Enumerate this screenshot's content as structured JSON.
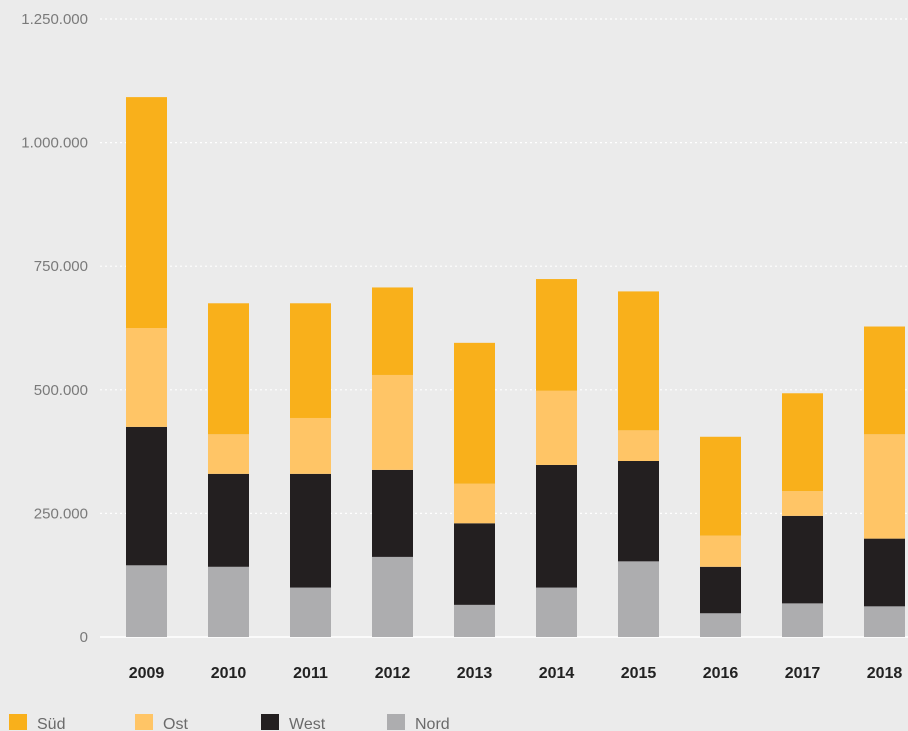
{
  "chart_data": {
    "type": "bar",
    "stacked": true,
    "categories": [
      "2009",
      "2010",
      "2011",
      "2012",
      "2013",
      "2014",
      "2015",
      "2016",
      "2017",
      "2018"
    ],
    "series": [
      {
        "name": "Nord",
        "color": "#adadaf",
        "values": [
          145000,
          142000,
          100000,
          162000,
          65000,
          100000,
          153000,
          48000,
          68000,
          62000
        ]
      },
      {
        "name": "West",
        "color": "#231f20",
        "values": [
          280000,
          188000,
          230000,
          176000,
          165000,
          248000,
          203000,
          94000,
          177000,
          137000
        ]
      },
      {
        "name": "Ost",
        "color": "#ffc566",
        "values": [
          200000,
          80000,
          113000,
          192000,
          80000,
          150000,
          62000,
          63000,
          50000,
          211000
        ]
      },
      {
        "name": "Süd",
        "color": "#f9b01b",
        "values": [
          467000,
          265000,
          232000,
          177000,
          285000,
          226000,
          281000,
          200000,
          198000,
          218000
        ]
      }
    ],
    "yticks": [
      0,
      250000,
      500000,
      750000,
      1000000,
      1250000
    ],
    "ytick_labels": [
      "0",
      "250.000",
      "500.000",
      "750.000",
      "1.000.000",
      "1.250.000"
    ],
    "ylim": [
      0,
      1250000
    ],
    "grid": true,
    "legend_position": "bottom-left",
    "legend_order": [
      "Süd",
      "Ost",
      "West",
      "Nord"
    ]
  }
}
